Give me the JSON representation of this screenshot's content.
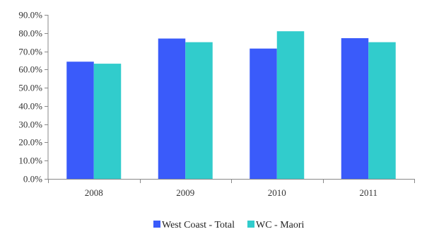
{
  "chart_data": {
    "type": "bar",
    "categories": [
      "2008",
      "2009",
      "2010",
      "2011"
    ],
    "series": [
      {
        "name": "West Coast - Total",
        "color": "#3a5bfa",
        "values": [
          64.3,
          77.0,
          71.5,
          77.2
        ]
      },
      {
        "name": "WC - Maori",
        "color": "#31cccc",
        "values": [
          63.2,
          75.0,
          81.0,
          75.0
        ]
      }
    ],
    "ylim": [
      0,
      90
    ],
    "yticks": [
      0,
      10,
      20,
      30,
      40,
      50,
      60,
      70,
      80,
      90
    ],
    "ytick_labels": [
      "0.0%",
      "10.0%",
      "20.0%",
      "30.0%",
      "40.0%",
      "50.0%",
      "60.0%",
      "70.0%",
      "80.0%",
      "90.0%"
    ],
    "grid": false,
    "legend_position": "bottom",
    "title": "",
    "xlabel": "",
    "ylabel": ""
  }
}
